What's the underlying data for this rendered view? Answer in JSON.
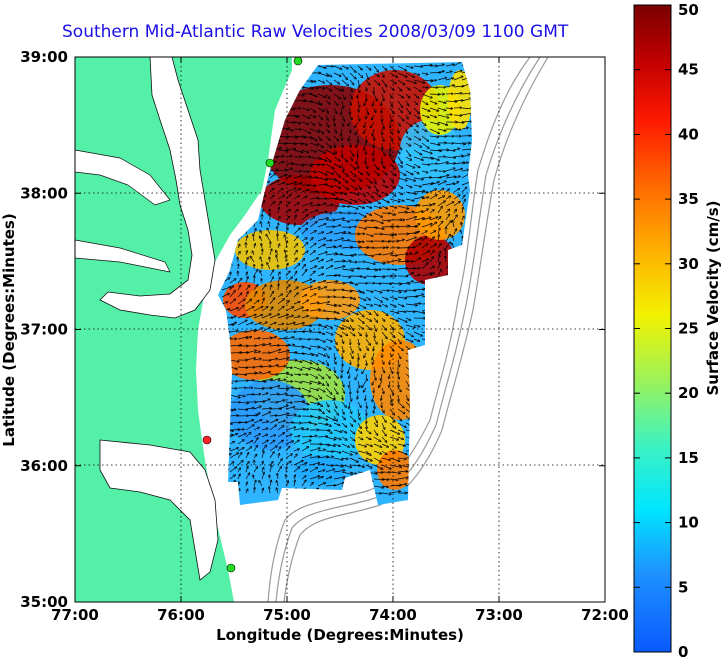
{
  "title": "Southern Mid-Atlantic Raw Velocities 2008/03/09 1100 GMT",
  "xlabel": "Longitude (Degrees:Minutes)",
  "ylabel": "Latitude (Degrees:Minutes)",
  "x_ticks": [
    "77:00",
    "76:00",
    "75:00",
    "74:00",
    "73:00",
    "72:00"
  ],
  "y_ticks": [
    "39:00",
    "38:00",
    "37:00",
    "36:00",
    "35:00"
  ],
  "colorbar": {
    "label": "Surface Velocity (cm/s)",
    "ticks": [
      "0",
      "5",
      "10",
      "15",
      "20",
      "25",
      "30",
      "35",
      "40",
      "45",
      "50"
    ]
  },
  "colors": {
    "land": "#55f0a8",
    "title": "#1a10e6",
    "stations_green": "#22dd22",
    "station_red": "#ff2222"
  },
  "chart_data": {
    "type": "heatmap",
    "title": "Southern Mid-Atlantic Raw Velocities 2008/03/09 1100 GMT",
    "xlabel": "Longitude (Degrees:Minutes)",
    "ylabel": "Latitude (Degrees:Minutes)",
    "xlim": [
      -77,
      -72
    ],
    "ylim": [
      35,
      39
    ],
    "value_label": "Surface Velocity (cm/s)",
    "value_range": [
      0,
      50
    ],
    "grid": true
  }
}
